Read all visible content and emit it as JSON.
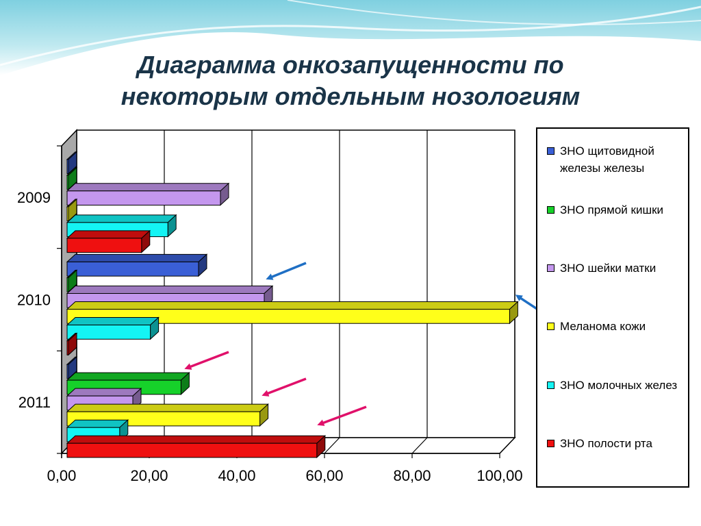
{
  "title": {
    "line1": "Диаграмма онкозапущенности по",
    "line2": "некоторым отдельным нозологиям"
  },
  "colors": {
    "title": "#1a3448",
    "annotation_blue": "#1f6fc4",
    "annotation_pink": "#e0106a",
    "header_gradient_top": "#8fd6e3",
    "header_gradient_bottom": "#ffffff"
  },
  "chart_data": {
    "type": "bar",
    "orientation": "horizontal",
    "three_d": true,
    "categories": [
      "2009",
      "2010",
      "2011"
    ],
    "series": [
      {
        "name": "ЗНО щитовидной железы железы",
        "color": "#3a5fd6",
        "values": [
          0,
          30,
          0
        ]
      },
      {
        "name": "ЗНО прямой кишки",
        "color": "#16d12a",
        "values": [
          0,
          0,
          26
        ]
      },
      {
        "name": "ЗНО шейки матки",
        "color": "#c497ee",
        "values": [
          35,
          45,
          15
        ]
      },
      {
        "name": "Меланома кожи",
        "color": "#ffff1a",
        "values": [
          0,
          101,
          44
        ]
      },
      {
        "name": "ЗНО молочных желез",
        "color": "#14f4f4",
        "values": [
          23,
          19,
          12
        ]
      },
      {
        "name": "ЗНО полости рта",
        "color": "#ef1010",
        "values": [
          17,
          0,
          57
        ]
      }
    ],
    "xlim": [
      0,
      100
    ],
    "x_ticks": [
      "0,00",
      "20,00",
      "40,00",
      "60,00",
      "80,00",
      "100,00"
    ],
    "grid": true,
    "legend": "right",
    "annotations": [
      {
        "type": "arrow",
        "color": "blue",
        "target": "2010 ЗНО шейки матки"
      },
      {
        "type": "arrow",
        "color": "blue",
        "target": "2010 Меланома кожи"
      },
      {
        "type": "arrow",
        "color": "pink",
        "target": "2011 ЗНО прямой кишки"
      },
      {
        "type": "arrow",
        "color": "pink",
        "target": "2011 Меланома кожи"
      },
      {
        "type": "arrow",
        "color": "pink",
        "target": "2011 ЗНО полости рта"
      }
    ]
  },
  "legend": {
    "items": [
      {
        "label": "ЗНО щитовидной железы железы"
      },
      {
        "label": "ЗНО прямой кишки"
      },
      {
        "label": "ЗНО шейки матки"
      },
      {
        "label": "Меланома кожи"
      },
      {
        "label": "ЗНО молочных желез"
      },
      {
        "label": "ЗНО полости рта"
      }
    ]
  }
}
